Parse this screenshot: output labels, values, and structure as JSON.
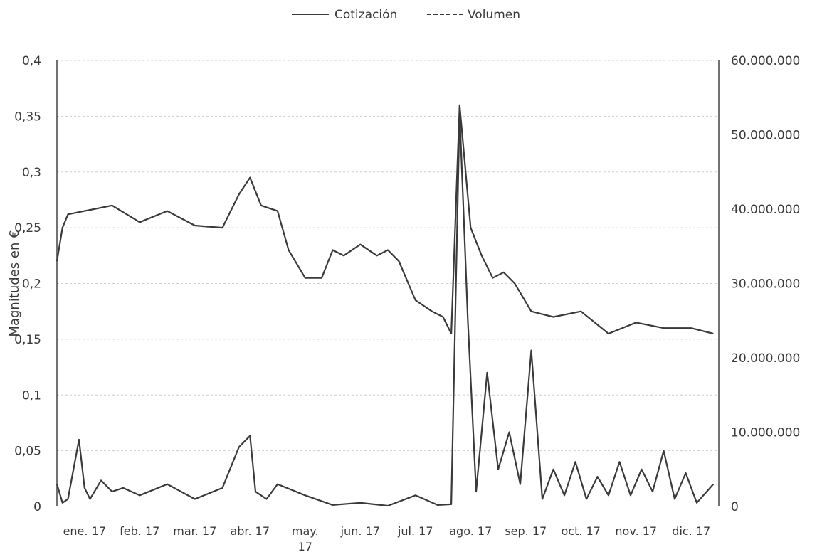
{
  "chart_data": {
    "type": "line",
    "title": "",
    "ylabel": "Magnitudes en €",
    "xlabel": "",
    "legend_position": "top",
    "grid": true,
    "y_left": {
      "ylim": [
        0,
        0.4
      ],
      "ticks": [
        0,
        0.05,
        0.1,
        0.15,
        0.2,
        0.25,
        0.3,
        0.35,
        0.4
      ],
      "tick_labels": [
        "0",
        "0,05",
        "0,1",
        "0,15",
        "0,2",
        "0,25",
        "0,3",
        "0,35",
        "0,4"
      ]
    },
    "y_right": {
      "ylim": [
        0,
        60000000
      ],
      "ticks": [
        0,
        10000000,
        20000000,
        30000000,
        40000000,
        50000000,
        60000000
      ],
      "tick_labels": [
        "0",
        "10.000.000",
        "20.000.000",
        "30.000.000",
        "40.000.000",
        "50.000.000",
        "60.000.000"
      ]
    },
    "categories": [
      "ene. 17",
      "feb. 17",
      "mar. 17",
      "abr. 17",
      "may. 17",
      "jun. 17",
      "jul. 17",
      "ago. 17",
      "sep. 17",
      "oct. 17",
      "nov. 17",
      "dic. 17"
    ],
    "series": [
      {
        "name": "Cotización",
        "axis": "left",
        "color": "#3a3a3a",
        "x": [
          0,
          0.1,
          0.2,
          0.5,
          1.0,
          1.5,
          2.0,
          2.5,
          3.0,
          3.3,
          3.5,
          3.7,
          4.0,
          4.2,
          4.5,
          4.8,
          5.0,
          5.2,
          5.5,
          5.8,
          6.0,
          6.2,
          6.5,
          6.8,
          7.0,
          7.15,
          7.3,
          7.5,
          7.7,
          7.9,
          8.1,
          8.3,
          8.6,
          9.0,
          9.5,
          10.0,
          10.5,
          11.0,
          11.5,
          11.9
        ],
        "y": [
          0.22,
          0.25,
          0.262,
          0.265,
          0.27,
          0.255,
          0.265,
          0.252,
          0.25,
          0.28,
          0.295,
          0.27,
          0.265,
          0.23,
          0.205,
          0.205,
          0.23,
          0.225,
          0.235,
          0.225,
          0.23,
          0.22,
          0.185,
          0.175,
          0.17,
          0.155,
          0.36,
          0.25,
          0.225,
          0.205,
          0.21,
          0.2,
          0.175,
          0.17,
          0.175,
          0.155,
          0.165,
          0.16,
          0.16,
          0.155
        ]
      },
      {
        "name": "Volumen",
        "axis": "right",
        "color": "#3a3a3a",
        "x": [
          0,
          0.1,
          0.2,
          0.4,
          0.5,
          0.6,
          0.8,
          1.0,
          1.2,
          1.5,
          2.0,
          2.5,
          3.0,
          3.3,
          3.5,
          3.6,
          3.8,
          4.0,
          4.5,
          5.0,
          5.5,
          6.0,
          6.5,
          6.9,
          7.15,
          7.3,
          7.45,
          7.6,
          7.8,
          8.0,
          8.2,
          8.4,
          8.6,
          8.8,
          9.0,
          9.2,
          9.4,
          9.6,
          9.8,
          10.0,
          10.2,
          10.4,
          10.6,
          10.8,
          11.0,
          11.2,
          11.4,
          11.6,
          11.9
        ],
        "y": [
          3000000,
          500000,
          1000000,
          9000000,
          2500000,
          1000000,
          3500000,
          2000000,
          2500000,
          1500000,
          3000000,
          1000000,
          2500000,
          8000000,
          9500000,
          2000000,
          1000000,
          3000000,
          1500000,
          200000,
          500000,
          100000,
          1500000,
          200000,
          300000,
          53000000,
          25000000,
          2000000,
          18000000,
          5000000,
          10000000,
          3000000,
          21000000,
          1000000,
          5000000,
          1500000,
          6000000,
          1000000,
          4000000,
          1500000,
          6000000,
          1500000,
          5000000,
          2000000,
          7500000,
          1000000,
          4500000,
          500000,
          3000000
        ]
      }
    ]
  }
}
